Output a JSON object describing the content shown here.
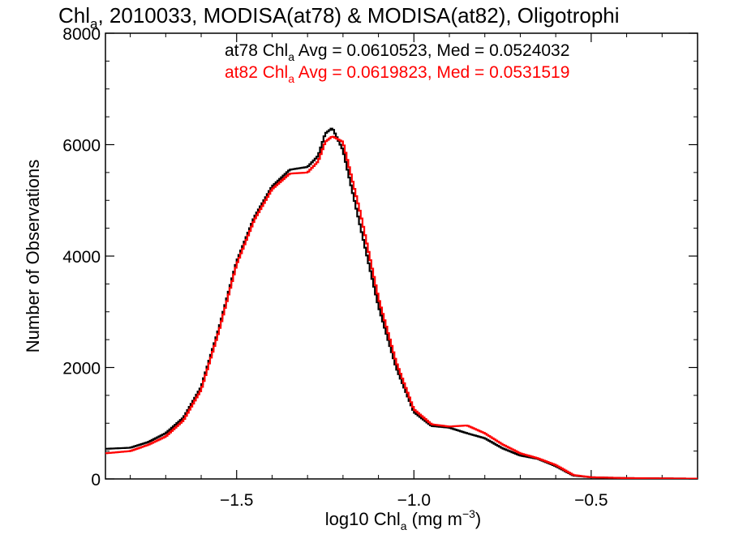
{
  "chart_data": {
    "type": "line",
    "title_main": "Chl",
    "title_sub": "a",
    "title_rest": ", 2010033, MODISA(at78) & MODISA(at82), Oligotrophi",
    "xlabel_main": "log10 Chl",
    "xlabel_sub": "a",
    "xlabel_unit_pre": " (mg m",
    "xlabel_unit_sup": "−3",
    "xlabel_unit_post": ")",
    "ylabel": "Number of Observations",
    "xlim": [
      -1.87,
      -0.2
    ],
    "ylim": [
      0,
      8000
    ],
    "xticks": [
      -1.5,
      -1.0,
      -0.5
    ],
    "xtick_labels": [
      "−1.5",
      "−1.0",
      "−0.5"
    ],
    "yticks": [
      0,
      2000,
      4000,
      6000,
      8000
    ],
    "ytick_labels": [
      "0",
      "2000",
      "4000",
      "6000",
      "8000"
    ],
    "grid": false,
    "annotations": [
      {
        "prefix": "at78 Chl",
        "sub": "a",
        "suffix": " Avg = 0.0610523, Med = 0.0524032",
        "color": "#000000"
      },
      {
        "prefix": "at82 Chl",
        "sub": "a",
        "suffix": " Avg = 0.0619823, Med = 0.0531519",
        "color": "#ff0000"
      }
    ],
    "series": [
      {
        "color": "#000000",
        "x": [
          -1.87,
          -1.8,
          -1.75,
          -1.7,
          -1.65,
          -1.6,
          -1.55,
          -1.5,
          -1.45,
          -1.4,
          -1.35,
          -1.3,
          -1.27,
          -1.25,
          -1.23,
          -1.2,
          -1.15,
          -1.1,
          -1.05,
          -1.0,
          -0.95,
          -0.9,
          -0.85,
          -0.8,
          -0.75,
          -0.7,
          -0.65,
          -0.6,
          -0.55,
          -0.5,
          -0.4,
          -0.3,
          -0.2
        ],
        "y": [
          540,
          560,
          660,
          820,
          1100,
          1650,
          2700,
          3900,
          4700,
          5250,
          5550,
          5600,
          5800,
          6200,
          6300,
          5900,
          4500,
          3100,
          2000,
          1200,
          950,
          920,
          820,
          730,
          550,
          420,
          360,
          230,
          60,
          30,
          15,
          10,
          5
        ]
      },
      {
        "color": "#ff0000",
        "x": [
          -1.87,
          -1.8,
          -1.75,
          -1.7,
          -1.65,
          -1.6,
          -1.55,
          -1.5,
          -1.45,
          -1.4,
          -1.35,
          -1.3,
          -1.27,
          -1.25,
          -1.23,
          -1.2,
          -1.15,
          -1.1,
          -1.05,
          -1.0,
          -0.95,
          -0.9,
          -0.85,
          -0.8,
          -0.75,
          -0.7,
          -0.65,
          -0.6,
          -0.55,
          -0.5,
          -0.4,
          -0.3,
          -0.2
        ],
        "y": [
          460,
          500,
          610,
          760,
          1050,
          1600,
          2650,
          3850,
          4650,
          5200,
          5480,
          5500,
          5700,
          6050,
          6150,
          6050,
          4750,
          3250,
          2100,
          1250,
          980,
          940,
          960,
          820,
          620,
          460,
          370,
          250,
          70,
          30,
          15,
          10,
          5
        ]
      }
    ]
  }
}
